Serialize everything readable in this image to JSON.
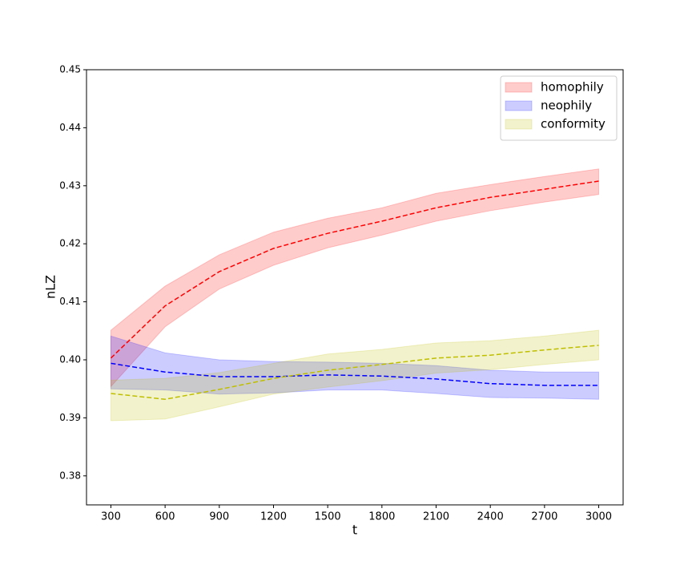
{
  "chart_data": {
    "type": "line",
    "x_label": "t",
    "y_label": "nLZ",
    "x": [
      300,
      600,
      900,
      1200,
      1500,
      1800,
      2100,
      2400,
      2700,
      3000
    ],
    "series": [
      {
        "name": "homophily",
        "color": "#ff0000",
        "values": [
          0.4003,
          0.4093,
          0.4152,
          0.4192,
          0.4218,
          0.4239,
          0.4262,
          0.428,
          0.4294,
          0.4308
        ],
        "lower": [
          0.3954,
          0.4057,
          0.4122,
          0.4163,
          0.4193,
          0.4215,
          0.4239,
          0.4257,
          0.4272,
          0.4285
        ],
        "upper": [
          0.4051,
          0.4127,
          0.4181,
          0.422,
          0.4244,
          0.4262,
          0.4287,
          0.4302,
          0.4316,
          0.4329
        ]
      },
      {
        "name": "neophily",
        "color": "#0000ff",
        "values": [
          0.3994,
          0.3979,
          0.3971,
          0.3971,
          0.3974,
          0.3972,
          0.3967,
          0.3959,
          0.3956,
          0.3956
        ],
        "lower": [
          0.395,
          0.3948,
          0.3941,
          0.3943,
          0.3948,
          0.3948,
          0.3942,
          0.3935,
          0.3934,
          0.3932
        ],
        "upper": [
          0.4041,
          0.4012,
          0.4,
          0.3997,
          0.3996,
          0.3994,
          0.399,
          0.3982,
          0.3979,
          0.3979
        ]
      },
      {
        "name": "conformity",
        "color": "#bfbf00",
        "values": [
          0.3942,
          0.3932,
          0.3949,
          0.3968,
          0.3982,
          0.3992,
          0.4003,
          0.4008,
          0.4017,
          0.4025
        ],
        "lower": [
          0.3895,
          0.3898,
          0.3919,
          0.3941,
          0.3953,
          0.3964,
          0.3977,
          0.3983,
          0.3992,
          0.4
        ],
        "upper": [
          0.3965,
          0.3968,
          0.3978,
          0.3994,
          0.401,
          0.4018,
          0.4029,
          0.4033,
          0.4041,
          0.4051
        ]
      }
    ],
    "xlim": [
      165,
      3135
    ],
    "xticks": [
      300,
      600,
      900,
      1200,
      1500,
      1800,
      2100,
      2400,
      2700,
      3000
    ],
    "ylim": [
      0.375,
      0.45
    ],
    "yticks": [
      0.38,
      0.39,
      {
        "value": 0.4,
        "label": "0.40"
      },
      0.41,
      0.42,
      0.43,
      0.44,
      0.45
    ],
    "legend": "upper right",
    "line_style": "dashed",
    "band_opacity": 0.2
  }
}
